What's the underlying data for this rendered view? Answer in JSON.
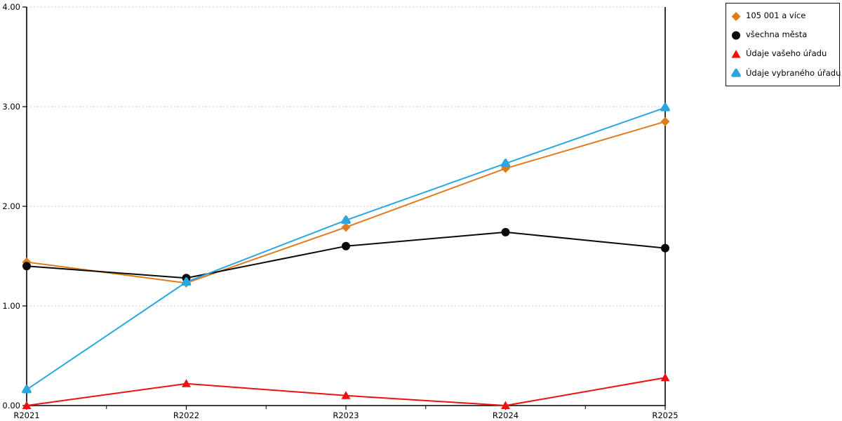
{
  "chart_data": {
    "type": "line",
    "title": "",
    "xlabel": "",
    "ylabel": "",
    "categories": [
      "R2021",
      "R2022",
      "R2023",
      "R2024",
      "R2025"
    ],
    "series": [
      {
        "name": "105 001 a více",
        "marker": "diamond",
        "color": "#e07b1e",
        "values": [
          1.44,
          1.23,
          1.79,
          2.38,
          2.85
        ]
      },
      {
        "name": "všechna města",
        "marker": "circle",
        "color": "#0a0a0a",
        "values": [
          1.4,
          1.28,
          1.6,
          1.74,
          1.58
        ]
      },
      {
        "name": "Údaje vašeho úřadu",
        "marker": "triangle",
        "color": "#ee1111",
        "values": [
          0.0,
          0.22,
          0.1,
          0.0,
          0.28
        ]
      },
      {
        "name": "Údaje vybraného úřadu",
        "marker": "triangle-rounded",
        "color": "#2aa7e0",
        "values": [
          0.16,
          1.24,
          1.86,
          2.43,
          2.99
        ]
      }
    ],
    "ylim": [
      0,
      4
    ],
    "yticks": [
      "0.00",
      "1.00",
      "2.00",
      "3.00",
      "4.00"
    ],
    "grid": "horizontal-dotted",
    "grid_color": "#c8c8c8",
    "axis_color": "#000000",
    "legend_position": "top-right"
  }
}
